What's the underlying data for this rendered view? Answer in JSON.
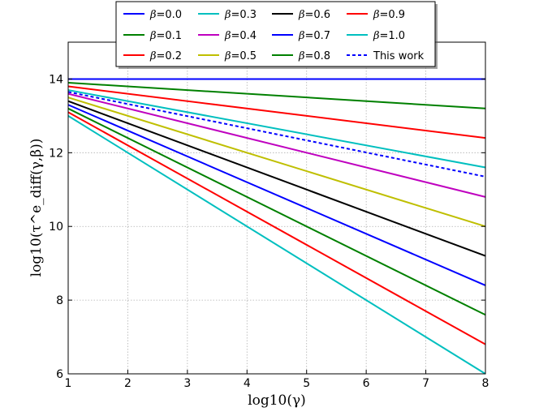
{
  "chart_data": {
    "type": "line",
    "title": "",
    "xlabel": "log10(γ)",
    "ylabel": "log10(τ^e_diff(γ,β))",
    "xlim": [
      1,
      8
    ],
    "ylim": [
      6,
      15
    ],
    "xticks": [
      1,
      2,
      3,
      4,
      5,
      6,
      7,
      8
    ],
    "yticks": [
      6,
      8,
      10,
      12,
      14
    ],
    "grid": true,
    "legend_position": "top-center",
    "legend_columns": 4,
    "series": [
      {
        "name": "β=0.0",
        "color": "#0000ff",
        "dash": "solid",
        "x": [
          1,
          8
        ],
        "y": [
          14.0,
          14.0
        ]
      },
      {
        "name": "β=0.1",
        "color": "#008000",
        "dash": "solid",
        "x": [
          1,
          8
        ],
        "y": [
          13.9,
          13.2
        ]
      },
      {
        "name": "β=0.2",
        "color": "#ff0000",
        "dash": "solid",
        "x": [
          1,
          8
        ],
        "y": [
          13.8,
          12.4
        ]
      },
      {
        "name": "β=0.3",
        "color": "#00bfbf",
        "dash": "solid",
        "x": [
          1,
          8
        ],
        "y": [
          13.7,
          11.6
        ]
      },
      {
        "name": "β=0.4",
        "color": "#bf00bf",
        "dash": "solid",
        "x": [
          1,
          8
        ],
        "y": [
          13.6,
          10.8
        ]
      },
      {
        "name": "β=0.5",
        "color": "#bfbf00",
        "dash": "solid",
        "x": [
          1,
          8
        ],
        "y": [
          13.5,
          10.0
        ]
      },
      {
        "name": "β=0.6",
        "color": "#000000",
        "dash": "solid",
        "x": [
          1,
          8
        ],
        "y": [
          13.4,
          9.2
        ]
      },
      {
        "name": "β=0.7",
        "color": "#0000ff",
        "dash": "solid",
        "x": [
          1,
          8
        ],
        "y": [
          13.3,
          8.4
        ]
      },
      {
        "name": "β=0.8",
        "color": "#008000",
        "dash": "solid",
        "x": [
          1,
          8
        ],
        "y": [
          13.2,
          7.6
        ]
      },
      {
        "name": "β=0.9",
        "color": "#ff0000",
        "dash": "solid",
        "x": [
          1,
          8
        ],
        "y": [
          13.1,
          6.8
        ]
      },
      {
        "name": "β=1.0",
        "color": "#00bfbf",
        "dash": "solid",
        "x": [
          1,
          8
        ],
        "y": [
          13.0,
          6.0
        ]
      },
      {
        "name": "This work",
        "color": "#0000ff",
        "dash": "dashed",
        "x": [
          1,
          8
        ],
        "y": [
          13.65,
          11.35
        ]
      }
    ]
  }
}
